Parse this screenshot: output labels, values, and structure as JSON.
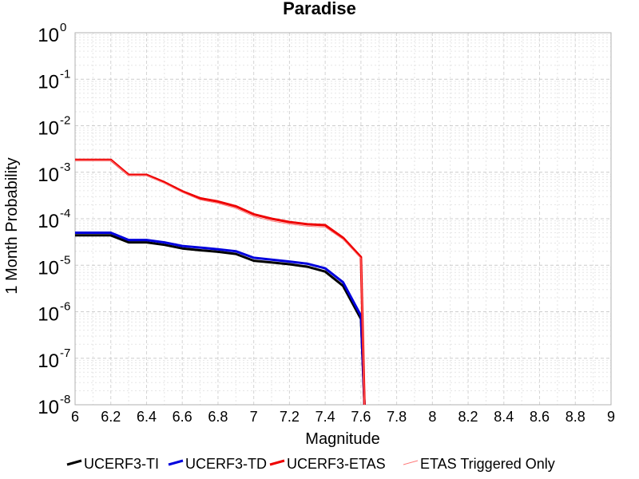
{
  "chart_data": {
    "type": "line",
    "title": "Paradise",
    "xlabel": "Magnitude",
    "ylabel": "1 Month Probability",
    "xlim": [
      6,
      9
    ],
    "ylim": [
      1e-08,
      1
    ],
    "yscale": "log",
    "grid": true,
    "legend_placement": "bottom",
    "x_ticks": [
      "6",
      "6.2",
      "6.4",
      "6.6",
      "6.8",
      "7",
      "7.2",
      "7.4",
      "7.6",
      "7.8",
      "8",
      "8.2",
      "8.4",
      "8.6",
      "8.8",
      "9"
    ],
    "y_ticks": [
      {
        "base": "10",
        "exp": "0"
      },
      {
        "base": "10",
        "exp": "-1"
      },
      {
        "base": "10",
        "exp": "-2"
      },
      {
        "base": "10",
        "exp": "-3"
      },
      {
        "base": "10",
        "exp": "-4"
      },
      {
        "base": "10",
        "exp": "-5"
      },
      {
        "base": "10",
        "exp": "-6"
      },
      {
        "base": "10",
        "exp": "-7"
      },
      {
        "base": "10",
        "exp": "-8"
      }
    ],
    "series": [
      {
        "name": "UCERF3-TI",
        "color": "#000000",
        "x": [
          6.0,
          6.2,
          6.3,
          6.4,
          6.5,
          6.6,
          6.7,
          6.8,
          6.9,
          7.0,
          7.1,
          7.2,
          7.3,
          7.4,
          7.5,
          7.6,
          7.62
        ],
        "y": [
          4.4e-05,
          4.4e-05,
          3.1e-05,
          3.1e-05,
          2.75e-05,
          2.3e-05,
          2.1e-05,
          1.95e-05,
          1.75e-05,
          1.25e-05,
          1.15e-05,
          1.05e-05,
          9.3e-06,
          7.3e-06,
          3.6e-06,
          7e-07,
          1e-08
        ]
      },
      {
        "name": "UCERF3-TD",
        "color": "#0000dd",
        "x": [
          6.0,
          6.2,
          6.3,
          6.4,
          6.5,
          6.6,
          6.7,
          6.8,
          6.9,
          7.0,
          7.1,
          7.2,
          7.3,
          7.4,
          7.5,
          7.6,
          7.62
        ],
        "y": [
          5e-05,
          5e-05,
          3.5e-05,
          3.5e-05,
          3.1e-05,
          2.6e-05,
          2.4e-05,
          2.2e-05,
          2e-05,
          1.45e-05,
          1.32e-05,
          1.2e-05,
          1.08e-05,
          8.6e-06,
          4.3e-06,
          8.2e-07,
          1e-08
        ]
      },
      {
        "name": "UCERF3-ETAS",
        "color": "#ee0000",
        "x": [
          6.0,
          6.2,
          6.3,
          6.4,
          6.5,
          6.6,
          6.7,
          6.8,
          6.9,
          7.0,
          7.1,
          7.2,
          7.3,
          7.4,
          7.5,
          7.6,
          7.62
        ],
        "y": [
          0.00185,
          0.00185,
          0.00088,
          0.00088,
          0.00061,
          0.00039,
          0.000275,
          0.000235,
          0.000185,
          0.000125,
          0.0001,
          8.5e-05,
          7.6e-05,
          7.3e-05,
          3.9e-05,
          1.5e-05,
          1e-08
        ]
      },
      {
        "name": "ETAS Triggered Only",
        "color": "#ff7777",
        "x": [
          6.0,
          6.2,
          6.3,
          6.4,
          6.5,
          6.6,
          6.7,
          6.8,
          6.9,
          7.0,
          7.1,
          7.2,
          7.3,
          7.4,
          7.5,
          7.6,
          7.62
        ],
        "y": [
          0.0018,
          0.0018,
          0.00085,
          0.00085,
          0.00058,
          0.00037,
          0.000255,
          0.000215,
          0.000168,
          0.000112,
          9e-05,
          7.7e-05,
          6.9e-05,
          6.6e-05,
          3.6e-05,
          1.4e-05,
          1e-08
        ]
      }
    ]
  }
}
